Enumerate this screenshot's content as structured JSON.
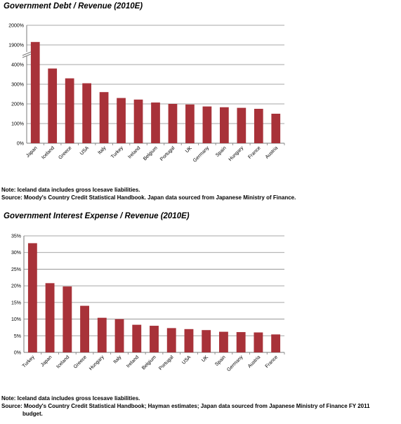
{
  "charts": [
    {
      "heading": "Government Debt / Revenue (2010E)",
      "note": "Note: Iceland data includes gross Icesave liabilities.",
      "source": "Source: Moody's Country Credit Statistical Handbook.  Japan data sourced from Japanese Ministry of Finance.",
      "source_cont": ""
    },
    {
      "heading": "Government Interest Expense / Revenue (2010E)",
      "note": "Note: Iceland data includes gross Icesave liabilities.",
      "source": "Source: Moody's Country Credit Statistical Handbook; Hayman estimates; Japan data sourced from Japanese Ministry of Finance FY 2011",
      "source_cont": "budget."
    }
  ],
  "chart_data": [
    {
      "type": "bar",
      "title": "Government Debt / Revenue (2010E)",
      "categories": [
        "Japan",
        "Iceland",
        "Greece",
        "USA",
        "Italy",
        "Turkey",
        "Ireland",
        "Belgium",
        "Portugal",
        "UK",
        "Germany",
        "Spain",
        "Hungary",
        "France",
        "Austria"
      ],
      "values": [
        1915,
        380,
        330,
        305,
        260,
        230,
        222,
        207,
        200,
        197,
        187,
        183,
        180,
        175,
        150
      ],
      "ytick_labels": [
        "0%",
        "100%",
        "200%",
        "300%",
        "400%",
        "1900%",
        "2000%"
      ],
      "ytick_values": [
        0,
        100,
        200,
        300,
        400,
        1900,
        2000
      ],
      "axis_break": [
        450,
        1850
      ],
      "ylim": [
        0,
        2000
      ],
      "bar_color": "#a83239",
      "grid": true
    },
    {
      "type": "bar",
      "title": "Government Interest Expense / Revenue (2010E)",
      "categories": [
        "Turkey",
        "Japan",
        "Iceland",
        "Greece",
        "Hungary",
        "Italy",
        "Ireland",
        "Belgium",
        "Portugal",
        "USA",
        "UK",
        "Spain",
        "Germany",
        "Austria",
        "France"
      ],
      "values": [
        32.8,
        20.8,
        19.8,
        14.0,
        10.4,
        10.0,
        8.3,
        8.0,
        7.3,
        7.0,
        6.7,
        6.2,
        6.1,
        6.0,
        5.4
      ],
      "ytick_labels": [
        "0%",
        "5%",
        "10%",
        "15%",
        "20%",
        "25%",
        "30%",
        "35%"
      ],
      "ytick_values": [
        0,
        5,
        10,
        15,
        20,
        25,
        30,
        35
      ],
      "ylim": [
        0,
        35
      ],
      "bar_color": "#a83239",
      "grid": true
    }
  ]
}
